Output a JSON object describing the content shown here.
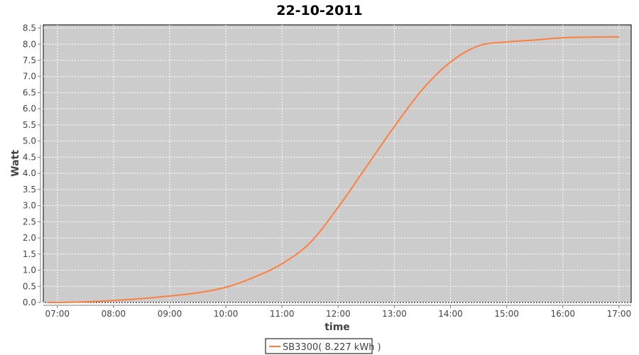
{
  "chart_data": {
    "type": "line",
    "title": "22-10-2011",
    "xlabel": "time",
    "ylabel": "Watt",
    "xlim": [
      "06:45",
      "17:13"
    ],
    "ylim": [
      0,
      8.6
    ],
    "xticks": [
      "07:00",
      "08:00",
      "09:00",
      "10:00",
      "11:00",
      "12:00",
      "13:00",
      "14:00",
      "15:00",
      "16:00",
      "17:00"
    ],
    "yticks": [
      "0.0",
      "0.5",
      "1.0",
      "1.5",
      "2.0",
      "2.5",
      "3.0",
      "3.5",
      "4.0",
      "4.5",
      "5.0",
      "5.5",
      "6.0",
      "6.5",
      "7.0",
      "7.5",
      "8.0",
      "8.5"
    ],
    "grid": true,
    "legend_position": "bottom",
    "plot_background": "#cccccc",
    "series": [
      {
        "name": "SB3300( 8.227 kWh )",
        "color": "#ff7f3f",
        "x": [
          "06:49",
          "07:00",
          "07:30",
          "08:00",
          "08:30",
          "09:00",
          "09:30",
          "10:00",
          "10:30",
          "11:00",
          "11:30",
          "12:00",
          "12:30",
          "13:00",
          "13:30",
          "14:00",
          "14:30",
          "15:00",
          "15:30",
          "16:00",
          "16:30",
          "17:00"
        ],
        "y": [
          0,
          0.0,
          0.02,
          0.06,
          0.12,
          0.2,
          0.3,
          0.47,
          0.78,
          1.2,
          1.85,
          2.95,
          4.2,
          5.45,
          6.6,
          7.45,
          7.95,
          8.07,
          8.13,
          8.2,
          8.22,
          8.227
        ]
      }
    ]
  }
}
